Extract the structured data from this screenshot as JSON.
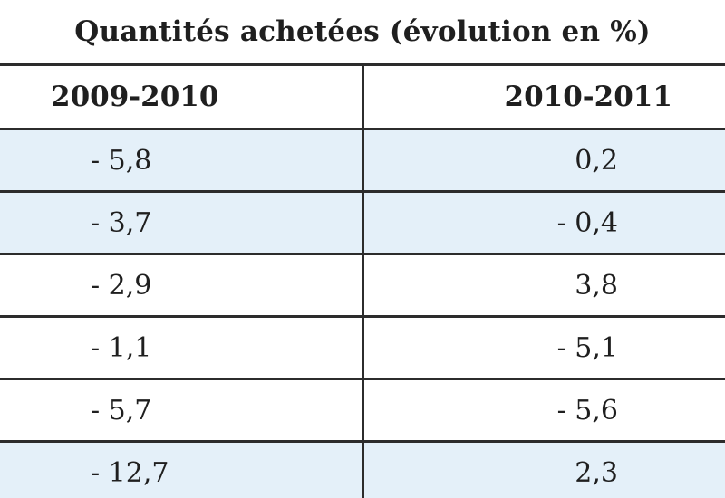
{
  "colors": {
    "row_shade": "#e4f0f9",
    "rule": "#2c2c2c"
  },
  "table": {
    "title": "Quantités achetées (évolution en %)",
    "columns": [
      "2009-2010",
      "2010-2011"
    ],
    "rows": [
      {
        "a": "- 5,8",
        "b": "0,2",
        "shaded": true
      },
      {
        "a": "- 3,7",
        "b": "- 0,4",
        "shaded": true
      },
      {
        "a": "- 2,9",
        "b": "3,8",
        "shaded": false
      },
      {
        "a": "- 1,1",
        "b": "- 5,1",
        "shaded": false
      },
      {
        "a": "- 5,7",
        "b": "- 5,6",
        "shaded": false
      },
      {
        "a": "- 12,7",
        "b": "2,3",
        "shaded": true
      }
    ]
  }
}
